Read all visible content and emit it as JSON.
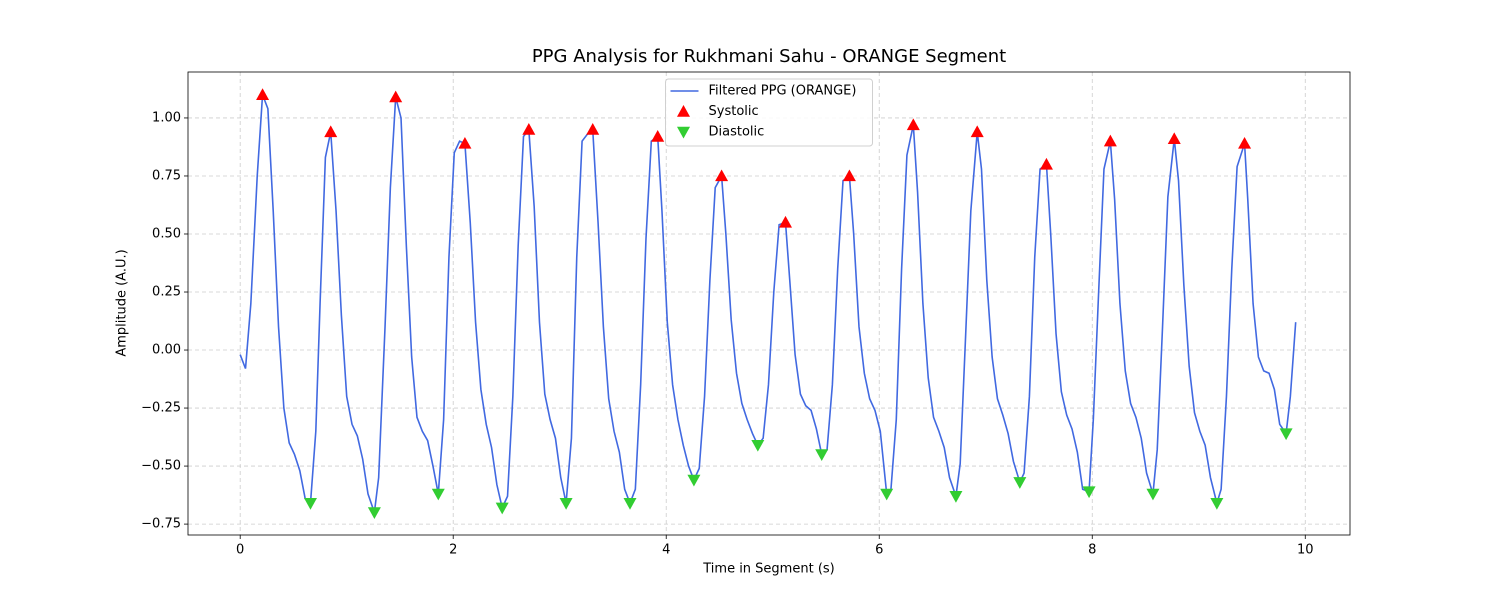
{
  "chart_data": {
    "type": "line",
    "title": "PPG Analysis for Rukhmani Sahu - ORANGE Segment",
    "x_label": "Time in Segment (s)",
    "y_label": "Amplitude (A.U.)",
    "xlim": [
      -0.49,
      10.42
    ],
    "ylim": [
      -0.797,
      1.198
    ],
    "xticks": [
      0,
      2,
      4,
      6,
      8,
      10
    ],
    "yticks": [
      {
        "value": -0.75,
        "label": "−0.75"
      },
      {
        "value": -0.5,
        "label": "−0.50"
      },
      {
        "value": -0.25,
        "label": "−0.25"
      },
      {
        "value": 0,
        "label": "0.00"
      },
      0.25,
      {
        "value": 0.5,
        "label": "0.50"
      },
      0.75,
      {
        "value": 1,
        "label": "1.00"
      }
    ],
    "grid": true,
    "legend": "upper center",
    "x": [
      0,
      0.05,
      0.1,
      0.16,
      0.21,
      0.26,
      0.31,
      0.36,
      0.41,
      0.46,
      0.51,
      0.56,
      0.61,
      0.66,
      0.71,
      0.75,
      0.8,
      0.85,
      0.9,
      0.95,
      1.0,
      1.05,
      1.1,
      1.15,
      1.2,
      1.26,
      1.3,
      1.36,
      1.41,
      1.46,
      1.51,
      1.56,
      1.61,
      1.66,
      1.71,
      1.76,
      1.81,
      1.86,
      1.91,
      1.96,
      2.01,
      2.06,
      2.11,
      2.16,
      2.21,
      2.26,
      2.31,
      2.36,
      2.41,
      2.46,
      2.51,
      2.56,
      2.61,
      2.66,
      2.71,
      2.76,
      2.81,
      2.86,
      2.91,
      2.96,
      3.01,
      3.06,
      3.11,
      3.16,
      3.21,
      3.26,
      3.31,
      3.36,
      3.41,
      3.46,
      3.51,
      3.56,
      3.61,
      3.66,
      3.71,
      3.76,
      3.81,
      3.86,
      3.92,
      3.96,
      4.01,
      4.06,
      4.11,
      4.16,
      4.21,
      4.26,
      4.31,
      4.36,
      4.41,
      4.46,
      4.52,
      4.56,
      4.61,
      4.66,
      4.71,
      4.76,
      4.81,
      4.86,
      4.91,
      4.96,
      5.01,
      5.06,
      5.12,
      5.16,
      5.21,
      5.26,
      5.31,
      5.36,
      5.41,
      5.46,
      5.51,
      5.56,
      5.61,
      5.66,
      5.72,
      5.76,
      5.81,
      5.86,
      5.91,
      5.96,
      6.01,
      6.07,
      6.11,
      6.16,
      6.21,
      6.26,
      6.32,
      6.36,
      6.41,
      6.46,
      6.51,
      6.56,
      6.61,
      6.66,
      6.72,
      6.76,
      6.81,
      6.86,
      6.92,
      6.96,
      7.01,
      7.06,
      7.11,
      7.16,
      7.21,
      7.26,
      7.32,
      7.36,
      7.41,
      7.46,
      7.51,
      7.57,
      7.61,
      7.66,
      7.71,
      7.76,
      7.81,
      7.86,
      7.91,
      7.97,
      8.01,
      8.06,
      8.11,
      8.17,
      8.21,
      8.26,
      8.31,
      8.36,
      8.41,
      8.46,
      8.51,
      8.57,
      8.61,
      8.66,
      8.71,
      8.77,
      8.81,
      8.86,
      8.91,
      8.96,
      9.01,
      9.06,
      9.11,
      9.17,
      9.21,
      9.26,
      9.31,
      9.36,
      9.43,
      9.46,
      9.51,
      9.56,
      9.61,
      9.66,
      9.71,
      9.76,
      9.82,
      9.86,
      9.91
    ],
    "series": [
      {
        "name": "Filtered PPG (ORANGE)",
        "color": "#4169e1",
        "marker": "line",
        "values": [
          -0.02,
          -0.08,
          0.2,
          0.75,
          1.1,
          1.04,
          0.6,
          0.1,
          -0.25,
          -0.4,
          -0.45,
          -0.52,
          -0.64,
          -0.66,
          -0.35,
          0.2,
          0.83,
          0.94,
          0.6,
          0.15,
          -0.2,
          -0.32,
          -0.37,
          -0.47,
          -0.62,
          -0.7,
          -0.55,
          0.1,
          0.7,
          1.09,
          1.0,
          0.45,
          -0.03,
          -0.29,
          -0.35,
          -0.39,
          -0.5,
          -0.62,
          -0.3,
          0.4,
          0.85,
          0.9,
          0.89,
          0.55,
          0.12,
          -0.17,
          -0.32,
          -0.42,
          -0.58,
          -0.68,
          -0.63,
          -0.2,
          0.45,
          0.92,
          0.95,
          0.62,
          0.12,
          -0.19,
          -0.3,
          -0.38,
          -0.55,
          -0.66,
          -0.38,
          0.4,
          0.9,
          0.93,
          0.95,
          0.55,
          0.1,
          -0.21,
          -0.35,
          -0.44,
          -0.6,
          -0.66,
          -0.6,
          -0.15,
          0.48,
          0.9,
          0.92,
          0.6,
          0.12,
          -0.15,
          -0.3,
          -0.41,
          -0.5,
          -0.56,
          -0.51,
          -0.2,
          0.3,
          0.7,
          0.75,
          0.5,
          0.13,
          -0.1,
          -0.23,
          -0.3,
          -0.36,
          -0.41,
          -0.38,
          -0.15,
          0.25,
          0.54,
          0.55,
          0.3,
          -0.02,
          -0.19,
          -0.24,
          -0.26,
          -0.34,
          -0.45,
          -0.43,
          -0.15,
          0.35,
          0.73,
          0.75,
          0.5,
          0.1,
          -0.1,
          -0.21,
          -0.26,
          -0.35,
          -0.62,
          -0.6,
          -0.3,
          0.35,
          0.84,
          0.97,
          0.68,
          0.2,
          -0.12,
          -0.29,
          -0.35,
          -0.42,
          -0.55,
          -0.63,
          -0.49,
          0.05,
          0.6,
          0.94,
          0.78,
          0.3,
          -0.03,
          -0.21,
          -0.28,
          -0.36,
          -0.48,
          -0.57,
          -0.53,
          -0.2,
          0.4,
          0.78,
          0.8,
          0.5,
          0.07,
          -0.18,
          -0.28,
          -0.34,
          -0.44,
          -0.6,
          -0.61,
          -0.3,
          0.25,
          0.78,
          0.9,
          0.65,
          0.2,
          -0.09,
          -0.23,
          -0.29,
          -0.38,
          -0.53,
          -0.62,
          -0.43,
          0.1,
          0.66,
          0.91,
          0.73,
          0.28,
          -0.07,
          -0.27,
          -0.35,
          -0.41,
          -0.55,
          -0.66,
          -0.6,
          -0.2,
          0.35,
          0.79,
          0.89,
          0.65,
          0.2,
          -0.03,
          -0.09,
          -0.1,
          -0.17,
          -0.32,
          -0.36,
          -0.2,
          0.12
        ]
      },
      {
        "name": "Systolic",
        "color": "#ff0000",
        "marker": "triangle-up",
        "x": [
          0.21,
          0.85,
          1.46,
          2.11,
          2.71,
          3.31,
          3.92,
          4.52,
          5.12,
          5.72,
          6.32,
          6.92,
          7.57,
          8.17,
          8.77,
          9.43
        ],
        "values": [
          1.1,
          0.94,
          1.09,
          0.89,
          0.95,
          0.95,
          0.92,
          0.75,
          0.55,
          0.75,
          0.97,
          0.94,
          0.8,
          0.9,
          0.91,
          0.89
        ]
      },
      {
        "name": "Diastolic",
        "color": "#32cd32",
        "marker": "triangle-down",
        "x": [
          0.66,
          1.26,
          1.86,
          2.46,
          3.06,
          3.66,
          4.26,
          4.86,
          5.46,
          6.07,
          6.72,
          7.32,
          7.97,
          8.57,
          9.17,
          9.82
        ],
        "values": [
          -0.66,
          -0.7,
          -0.62,
          -0.68,
          -0.66,
          -0.66,
          -0.56,
          -0.41,
          -0.45,
          -0.62,
          -0.63,
          -0.57,
          -0.61,
          -0.62,
          -0.66,
          -0.36
        ]
      }
    ]
  }
}
